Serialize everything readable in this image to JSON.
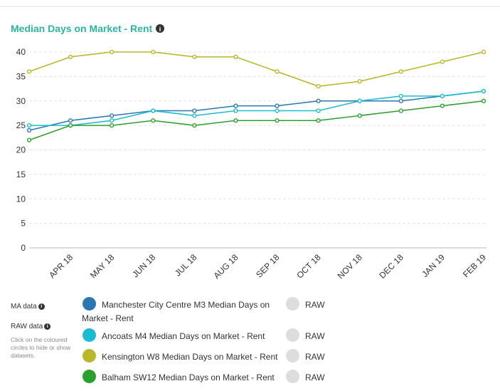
{
  "chart_data": {
    "type": "line",
    "title": "Median Days on Market - Rent",
    "categories": [
      null,
      "APR 18",
      "MAY 18",
      "JUN 18",
      "JUL 18",
      "AUG 18",
      "SEP 18",
      "OCT 18",
      "NOV 18",
      "DEC 18",
      "JAN 19",
      "FEB 19"
    ],
    "series": [
      {
        "name": "Manchester City Centre M3 Median Days on Market - Rent",
        "color": "#2a77b4",
        "values": [
          24,
          26,
          27,
          28,
          28,
          29,
          29,
          30,
          30,
          30,
          31,
          32
        ]
      },
      {
        "name": "Ancoats M4 Median Days on Market - Rent",
        "color": "#1bbcd2",
        "values": [
          25,
          25,
          26,
          28,
          27,
          28,
          28,
          28,
          30,
          31,
          31,
          32
        ]
      },
      {
        "name": "Kensington W8 Median Days on Market - Rent",
        "color": "#b8b82a",
        "values": [
          36,
          39,
          40,
          40,
          39,
          39,
          36,
          33,
          34,
          36,
          38,
          40
        ]
      },
      {
        "name": "Balham SW12 Median Days on Market - Rent",
        "color": "#2ca02c",
        "values": [
          22,
          25,
          25,
          26,
          25,
          26,
          26,
          26,
          27,
          28,
          29,
          30
        ]
      }
    ],
    "ylim": [
      0,
      40
    ],
    "yticks": [
      0,
      5,
      10,
      15,
      20,
      25,
      30,
      35,
      40
    ],
    "grid": true,
    "ma_label": "MA data",
    "raw_label": "RAW data",
    "hint": "Click on the coloured circles to hide or show datasets.",
    "raw_toggles": [
      "RAW",
      "RAW",
      "RAW",
      "RAW"
    ]
  }
}
